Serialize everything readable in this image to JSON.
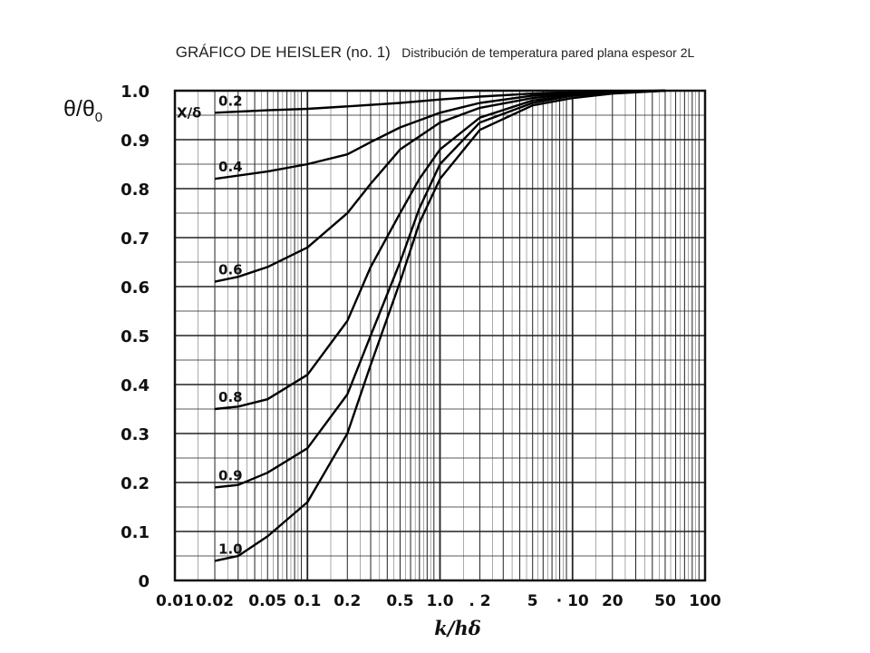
{
  "title": {
    "main": "GRÁFICO DE HEISLER (no. 1)",
    "sub": "Distribución de temperatura pared plana espesor 2L"
  },
  "y_axis_label": {
    "base": "θ/θ",
    "subscript": "0"
  },
  "curve_family_label": "X/δ",
  "chart_data": {
    "type": "line",
    "title": "GRÁFICO DE HEISLER (no. 1)",
    "subtitle": "Distribución de temperatura pared plana espesor 2L",
    "xlabel": "k/hδ",
    "ylabel": "θ/θ0",
    "x_scale": "log",
    "xlim": [
      0.01,
      100
    ],
    "ylim": [
      0,
      1.0
    ],
    "grid": true,
    "x_ticks": [
      {
        "value": 0.01,
        "label": "0.01"
      },
      {
        "value": 0.02,
        "label": "0.02"
      },
      {
        "value": 0.05,
        "label": "0.05"
      },
      {
        "value": 0.1,
        "label": "0.1"
      },
      {
        "value": 0.2,
        "label": "0.2"
      },
      {
        "value": 0.5,
        "label": "0.5"
      },
      {
        "value": 1.0,
        "label": "1.0"
      },
      {
        "value": 2,
        "label": ". 2"
      },
      {
        "value": 5,
        "label": "5"
      },
      {
        "value": 10,
        "label": "· 10"
      },
      {
        "value": 20,
        "label": "20"
      },
      {
        "value": 50,
        "label": "50"
      },
      {
        "value": 100,
        "label": "100"
      }
    ],
    "y_ticks": [
      {
        "value": 0,
        "label": "0"
      },
      {
        "value": 0.1,
        "label": "0.1"
      },
      {
        "value": 0.2,
        "label": "0.2"
      },
      {
        "value": 0.3,
        "label": "0.3"
      },
      {
        "value": 0.4,
        "label": "0.4"
      },
      {
        "value": 0.5,
        "label": "0.5"
      },
      {
        "value": 0.6,
        "label": "0.6"
      },
      {
        "value": 0.7,
        "label": "0.7"
      },
      {
        "value": 0.8,
        "label": "0.8"
      },
      {
        "value": 0.9,
        "label": "0.9"
      },
      {
        "value": 1.0,
        "label": "1.0"
      }
    ],
    "series": [
      {
        "name": "0.2",
        "label": "0.2",
        "points": [
          [
            0.02,
            0.955
          ],
          [
            0.05,
            0.96
          ],
          [
            0.1,
            0.963
          ],
          [
            0.2,
            0.968
          ],
          [
            0.5,
            0.975
          ],
          [
            1,
            0.982
          ],
          [
            2,
            0.988
          ],
          [
            5,
            0.994
          ],
          [
            10,
            0.997
          ],
          [
            20,
            0.999
          ],
          [
            50,
            1.0
          ]
        ]
      },
      {
        "name": "0.4",
        "label": "0.4",
        "points": [
          [
            0.02,
            0.82
          ],
          [
            0.05,
            0.835
          ],
          [
            0.1,
            0.85
          ],
          [
            0.2,
            0.87
          ],
          [
            0.3,
            0.895
          ],
          [
            0.5,
            0.925
          ],
          [
            1,
            0.955
          ],
          [
            2,
            0.975
          ],
          [
            5,
            0.99
          ],
          [
            10,
            0.995
          ],
          [
            20,
            0.998
          ],
          [
            50,
            1.0
          ]
        ]
      },
      {
        "name": "0.6",
        "label": "0.6",
        "points": [
          [
            0.02,
            0.61
          ],
          [
            0.03,
            0.62
          ],
          [
            0.05,
            0.64
          ],
          [
            0.1,
            0.68
          ],
          [
            0.2,
            0.75
          ],
          [
            0.3,
            0.81
          ],
          [
            0.5,
            0.88
          ],
          [
            1,
            0.935
          ],
          [
            2,
            0.965
          ],
          [
            5,
            0.985
          ],
          [
            10,
            0.993
          ],
          [
            20,
            0.997
          ],
          [
            50,
            1.0
          ]
        ]
      },
      {
        "name": "0.8",
        "label": "0.8",
        "points": [
          [
            0.02,
            0.35
          ],
          [
            0.03,
            0.355
          ],
          [
            0.05,
            0.37
          ],
          [
            0.1,
            0.42
          ],
          [
            0.2,
            0.53
          ],
          [
            0.3,
            0.64
          ],
          [
            0.5,
            0.75
          ],
          [
            0.7,
            0.82
          ],
          [
            1,
            0.88
          ],
          [
            2,
            0.945
          ],
          [
            5,
            0.98
          ],
          [
            10,
            0.99
          ],
          [
            20,
            0.996
          ],
          [
            50,
            1.0
          ]
        ]
      },
      {
        "name": "0.9",
        "label": "0.9",
        "points": [
          [
            0.02,
            0.19
          ],
          [
            0.03,
            0.195
          ],
          [
            0.05,
            0.22
          ],
          [
            0.1,
            0.27
          ],
          [
            0.2,
            0.38
          ],
          [
            0.3,
            0.5
          ],
          [
            0.5,
            0.65
          ],
          [
            0.7,
            0.76
          ],
          [
            1,
            0.85
          ],
          [
            2,
            0.935
          ],
          [
            5,
            0.975
          ],
          [
            10,
            0.99
          ],
          [
            20,
            0.996
          ],
          [
            50,
            1.0
          ]
        ]
      },
      {
        "name": "1.0",
        "label": "1.0",
        "points": [
          [
            0.02,
            0.04
          ],
          [
            0.03,
            0.05
          ],
          [
            0.05,
            0.09
          ],
          [
            0.1,
            0.16
          ],
          [
            0.2,
            0.3
          ],
          [
            0.3,
            0.44
          ],
          [
            0.5,
            0.61
          ],
          [
            0.7,
            0.73
          ],
          [
            1,
            0.82
          ],
          [
            2,
            0.92
          ],
          [
            5,
            0.97
          ],
          [
            10,
            0.985
          ],
          [
            20,
            0.994
          ],
          [
            50,
            1.0
          ]
        ]
      }
    ]
  }
}
